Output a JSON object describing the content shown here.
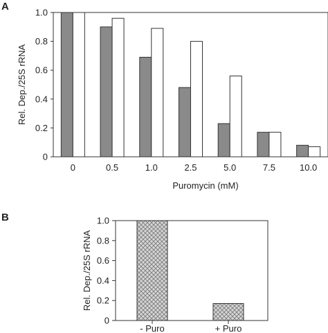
{
  "colors": {
    "axis": "#333333",
    "grey_bar": "#8a8a8a",
    "white_bar": "#ffffff",
    "hatch_bg": "#d6d6d6",
    "hatch_line": "#7a7a7a"
  },
  "chart_data": [
    {
      "panel_label": "A",
      "type": "bar",
      "categories": [
        "0",
        "0.5",
        "1.0",
        "2.5",
        "5.0",
        "7.5",
        "10.0"
      ],
      "series": [
        {
          "values": [
            1.0,
            0.9,
            0.69,
            0.48,
            0.23,
            0.17,
            0.08
          ],
          "fill": "grey"
        },
        {
          "values": [
            1.0,
            0.96,
            0.89,
            0.8,
            0.56,
            0.17,
            0.07
          ],
          "fill": "white"
        }
      ],
      "xlabel": "Puromycin (mM)",
      "ylabel": "Rel. Dep./25S rRNA",
      "ylim": [
        0,
        1.0
      ],
      "yticks": [
        "0",
        "0.2",
        "0.4",
        "0.6",
        "0.8",
        "1.0"
      ],
      "grid": false,
      "legend": "none"
    },
    {
      "panel_label": "B",
      "type": "bar",
      "categories": [
        "- Puro",
        "+ Puro"
      ],
      "values": [
        1.0,
        0.17
      ],
      "fill": "crosshatch",
      "xlabel": "",
      "ylabel": "Rel. Dep./25S rRNA",
      "ylim": [
        0,
        1.0
      ],
      "yticks": [
        "0",
        "0.2",
        "0.4",
        "0.6",
        "0.8",
        "1.0"
      ],
      "grid": false,
      "legend": "none"
    }
  ]
}
